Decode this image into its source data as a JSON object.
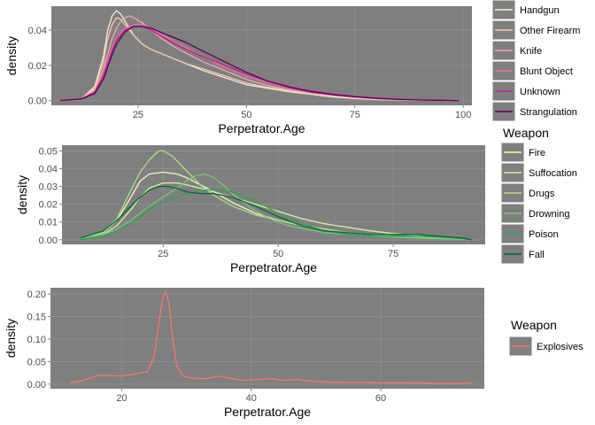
{
  "colors": {
    "panel_bg": "#7f7f7f",
    "grid_major": "#8c8c8c",
    "grid_minor": "#858585",
    "legend_key_bg": "#7f7f7f",
    "axis_text": "#4d4d4d",
    "title_text": "#000000"
  },
  "chart_data": [
    {
      "type": "line",
      "xlabel": "Perpetrator.Age",
      "ylabel": "density",
      "xlim": [
        5,
        102
      ],
      "ylim": [
        -0.0027,
        0.0535
      ],
      "xticks": [
        25,
        50,
        75,
        100
      ],
      "yticks": [
        0.0,
        0.02,
        0.04
      ],
      "ytick_labels": [
        "0.00",
        "0.02",
        "0.04"
      ],
      "grid": true,
      "legend_title": "",
      "legend_position": "right",
      "series": [
        {
          "name": "Handgun",
          "color": "#f3f0d2",
          "x": [
            7,
            12,
            15,
            17,
            18,
            19,
            20,
            21,
            22,
            24,
            26,
            28,
            30,
            33,
            36,
            40,
            45,
            50,
            55,
            60,
            65,
            70,
            75,
            80,
            85,
            90,
            95,
            99
          ],
          "y": [
            0,
            0.001,
            0.008,
            0.025,
            0.04,
            0.048,
            0.051,
            0.049,
            0.045,
            0.037,
            0.032,
            0.029,
            0.027,
            0.024,
            0.021,
            0.017,
            0.013,
            0.009,
            0.007,
            0.005,
            0.0035,
            0.002,
            0.0012,
            0.0006,
            0.0003,
            0.0002,
            0.0001,
            0
          ]
        },
        {
          "name": "Other Firearm",
          "color": "#f5c8b0",
          "x": [
            7,
            12,
            15,
            17,
            18,
            19,
            20,
            21,
            22,
            24,
            26,
            28,
            30,
            33,
            36,
            40,
            45,
            50,
            55,
            60,
            65,
            70,
            75,
            80,
            85,
            90,
            95,
            99
          ],
          "y": [
            0,
            0.001,
            0.007,
            0.022,
            0.035,
            0.043,
            0.047,
            0.046,
            0.043,
            0.037,
            0.032,
            0.029,
            0.027,
            0.024,
            0.021,
            0.018,
            0.014,
            0.01,
            0.0075,
            0.0055,
            0.0038,
            0.0025,
            0.0015,
            0.0008,
            0.0004,
            0.0002,
            0.0001,
            0
          ]
        },
        {
          "name": "Knife",
          "color": "#f4a6b4",
          "x": [
            7,
            12,
            15,
            17,
            19,
            20,
            21,
            22,
            23,
            24,
            26,
            28,
            30,
            33,
            36,
            40,
            45,
            50,
            55,
            60,
            65,
            70,
            75,
            80,
            85,
            90,
            95,
            99
          ],
          "y": [
            0,
            0.001,
            0.006,
            0.018,
            0.035,
            0.041,
            0.045,
            0.047,
            0.048,
            0.047,
            0.044,
            0.04,
            0.036,
            0.031,
            0.027,
            0.022,
            0.017,
            0.012,
            0.0085,
            0.006,
            0.004,
            0.0028,
            0.0018,
            0.001,
            0.0005,
            0.0003,
            0.0001,
            0
          ]
        },
        {
          "name": "Blunt Object",
          "color": "#ee6fa2",
          "x": [
            7,
            12,
            15,
            17,
            19,
            20,
            22,
            24,
            26,
            28,
            30,
            33,
            36,
            40,
            45,
            50,
            55,
            60,
            65,
            70,
            75,
            80,
            85,
            90,
            95,
            99
          ],
          "y": [
            0,
            0.001,
            0.005,
            0.015,
            0.03,
            0.036,
            0.041,
            0.043,
            0.043,
            0.041,
            0.038,
            0.034,
            0.03,
            0.025,
            0.019,
            0.014,
            0.01,
            0.007,
            0.005,
            0.0034,
            0.0022,
            0.0013,
            0.0007,
            0.0004,
            0.0002,
            0
          ]
        },
        {
          "name": "Unknown",
          "color": "#c9198f",
          "x": [
            7,
            12,
            15,
            17,
            19,
            20,
            22,
            24,
            26,
            28,
            30,
            33,
            36,
            40,
            45,
            50,
            55,
            60,
            65,
            70,
            75,
            80,
            85,
            90,
            95,
            99
          ],
          "y": [
            0,
            0.001,
            0.005,
            0.014,
            0.028,
            0.034,
            0.04,
            0.042,
            0.042,
            0.04,
            0.037,
            0.033,
            0.029,
            0.025,
            0.02,
            0.015,
            0.011,
            0.008,
            0.0055,
            0.0037,
            0.0024,
            0.0015,
            0.0008,
            0.0004,
            0.0002,
            0
          ]
        },
        {
          "name": "Strangulation",
          "color": "#5a0060",
          "x": [
            7,
            12,
            15,
            17,
            19,
            20,
            22,
            24,
            26,
            28,
            30,
            33,
            36,
            40,
            45,
            50,
            55,
            60,
            65,
            70,
            75,
            80,
            85,
            90,
            95,
            99
          ],
          "y": [
            0,
            0.001,
            0.004,
            0.012,
            0.026,
            0.032,
            0.039,
            0.042,
            0.042,
            0.041,
            0.039,
            0.036,
            0.033,
            0.028,
            0.022,
            0.016,
            0.011,
            0.0075,
            0.005,
            0.0033,
            0.0021,
            0.0012,
            0.0006,
            0.0003,
            0.0001,
            0
          ]
        }
      ]
    },
    {
      "type": "line",
      "xlabel": "Perpetrator.Age",
      "ylabel": "density",
      "xlim": [
        3,
        95
      ],
      "ylim": [
        -0.0026,
        0.0532
      ],
      "xticks": [
        25,
        50,
        75
      ],
      "yticks": [
        0.0,
        0.01,
        0.02,
        0.03,
        0.04,
        0.05
      ],
      "ytick_labels": [
        "0.00",
        "0.01",
        "0.02",
        "0.03",
        "0.04",
        "0.05"
      ],
      "grid": true,
      "legend_title": "Weapon",
      "legend_position": "right",
      "series": [
        {
          "name": "Fire",
          "color": "#f7fcb9",
          "x": [
            7,
            12,
            15,
            18,
            20,
            22,
            25,
            28,
            30,
            33,
            36,
            40,
            45,
            50,
            55,
            60,
            65,
            70,
            75,
            80,
            85,
            90,
            92
          ],
          "y": [
            0.001,
            0.004,
            0.011,
            0.024,
            0.033,
            0.037,
            0.038,
            0.037,
            0.035,
            0.031,
            0.027,
            0.021,
            0.015,
            0.011,
            0.008,
            0.006,
            0.004,
            0.003,
            0.002,
            0.0015,
            0.001,
            0.0005,
            0
          ]
        },
        {
          "name": "Suffocation",
          "color": "#d9f0a3",
          "x": [
            7,
            12,
            15,
            18,
            20,
            22,
            25,
            28,
            30,
            33,
            36,
            40,
            45,
            50,
            55,
            60,
            65,
            70,
            75,
            80,
            85,
            90,
            92
          ],
          "y": [
            0.001,
            0.003,
            0.008,
            0.017,
            0.024,
            0.029,
            0.032,
            0.032,
            0.031,
            0.029,
            0.027,
            0.024,
            0.02,
            0.016,
            0.012,
            0.009,
            0.007,
            0.005,
            0.0035,
            0.0025,
            0.0015,
            0.0008,
            0
          ]
        },
        {
          "name": "Drugs",
          "color": "#addd8e",
          "x": [
            7,
            12,
            15,
            18,
            20,
            22,
            24,
            25,
            27,
            30,
            33,
            36,
            40,
            45,
            50,
            55,
            60,
            65,
            70,
            75,
            80,
            85,
            90,
            92
          ],
          "y": [
            0.001,
            0.004,
            0.012,
            0.028,
            0.038,
            0.045,
            0.05,
            0.05,
            0.047,
            0.039,
            0.031,
            0.025,
            0.019,
            0.014,
            0.011,
            0.008,
            0.006,
            0.004,
            0.003,
            0.002,
            0.0015,
            0.001,
            0.0005,
            0
          ]
        },
        {
          "name": "Drowning",
          "color": "#78c679",
          "x": [
            7,
            12,
            15,
            18,
            20,
            22,
            25,
            28,
            30,
            32,
            34,
            36,
            38,
            40,
            44,
            48,
            52,
            56,
            60,
            65,
            70,
            75,
            80,
            85,
            90,
            92
          ],
          "y": [
            0.001,
            0.003,
            0.006,
            0.011,
            0.015,
            0.019,
            0.024,
            0.029,
            0.033,
            0.036,
            0.037,
            0.035,
            0.031,
            0.026,
            0.018,
            0.012,
            0.008,
            0.006,
            0.004,
            0.003,
            0.002,
            0.0015,
            0.001,
            0.0006,
            0.0003,
            0
          ]
        },
        {
          "name": "Poison",
          "color": "#31a354",
          "x": [
            7,
            12,
            15,
            18,
            20,
            22,
            24,
            26,
            28,
            30,
            33,
            36,
            40,
            45,
            50,
            55,
            60,
            65,
            70,
            75,
            80,
            85,
            90,
            92
          ],
          "y": [
            0,
            0.002,
            0.005,
            0.009,
            0.013,
            0.017,
            0.02,
            0.022,
            0.024,
            0.026,
            0.028,
            0.028,
            0.027,
            0.022,
            0.015,
            0.009,
            0.005,
            0.003,
            0.002,
            0.002,
            0.002,
            0.0015,
            0.0008,
            0
          ]
        },
        {
          "name": "Fall",
          "color": "#006837",
          "x": [
            7,
            12,
            15,
            18,
            20,
            22,
            24,
            26,
            28,
            30,
            33,
            36,
            40,
            45,
            50,
            55,
            60,
            65,
            70,
            75,
            80,
            85,
            90,
            92
          ],
          "y": [
            0.001,
            0.005,
            0.011,
            0.019,
            0.024,
            0.028,
            0.03,
            0.03,
            0.029,
            0.027,
            0.026,
            0.026,
            0.024,
            0.019,
            0.013,
            0.008,
            0.005,
            0.004,
            0.003,
            0.003,
            0.003,
            0.002,
            0.001,
            0
          ]
        }
      ]
    },
    {
      "type": "line",
      "xlabel": "Perpetrator.Age",
      "ylabel": "density",
      "xlim": [
        9,
        76
      ],
      "ylim": [
        -0.0102,
        0.214
      ],
      "xticks": [
        20,
        40,
        60
      ],
      "yticks": [
        0.0,
        0.05,
        0.1,
        0.15,
        0.2
      ],
      "ytick_labels": [
        "0.00",
        "0.05",
        "0.10",
        "0.15",
        "0.20"
      ],
      "grid": true,
      "legend_title": "Weapon",
      "legend_position": "right",
      "series": [
        {
          "name": "Explosives",
          "color": "#f8766d",
          "x": [
            12,
            14,
            16,
            17,
            18,
            20,
            22,
            24,
            25,
            25.7,
            26.3,
            26.8,
            27.3,
            27.8,
            28.5,
            29.5,
            31,
            33,
            35,
            37,
            39,
            41,
            43,
            45,
            47,
            49,
            51,
            54,
            57,
            60,
            64,
            68,
            72,
            74
          ],
          "y": [
            0.003,
            0.008,
            0.018,
            0.02,
            0.019,
            0.018,
            0.022,
            0.028,
            0.06,
            0.13,
            0.19,
            0.205,
            0.18,
            0.11,
            0.04,
            0.018,
            0.013,
            0.012,
            0.018,
            0.012,
            0.008,
            0.01,
            0.012,
            0.008,
            0.01,
            0.007,
            0.005,
            0.004,
            0.004,
            0.003,
            0.003,
            0.002,
            0.002,
            0.003
          ]
        }
      ]
    }
  ]
}
